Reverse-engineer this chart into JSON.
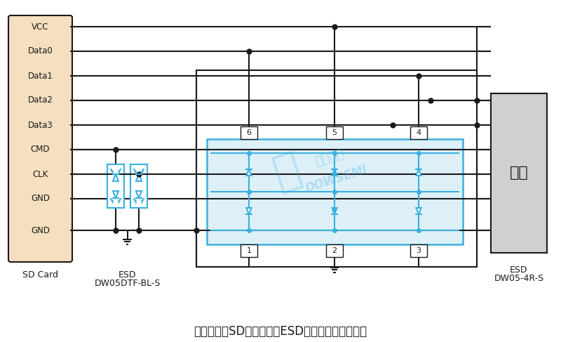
{
  "title": "东沃无人机SD存储卡端口ESD静电放电保护方案图",
  "title_fontsize": 12,
  "bg_color": "#ffffff",
  "sd_card_color": "#f5dfc0",
  "host_color": "#d0d0d0",
  "esd_component_color": "#3ab0e0",
  "line_color": "#1a1a1a",
  "blue_line_color": "#3ab0e0",
  "signal_labels": [
    "VCC",
    "Data0",
    "Data1",
    "Data2",
    "Data3",
    "CMD",
    "CLK",
    "GND",
    "GND"
  ],
  "watermark_color": "#3ab0e0",
  "watermark_alpha": 0.3
}
